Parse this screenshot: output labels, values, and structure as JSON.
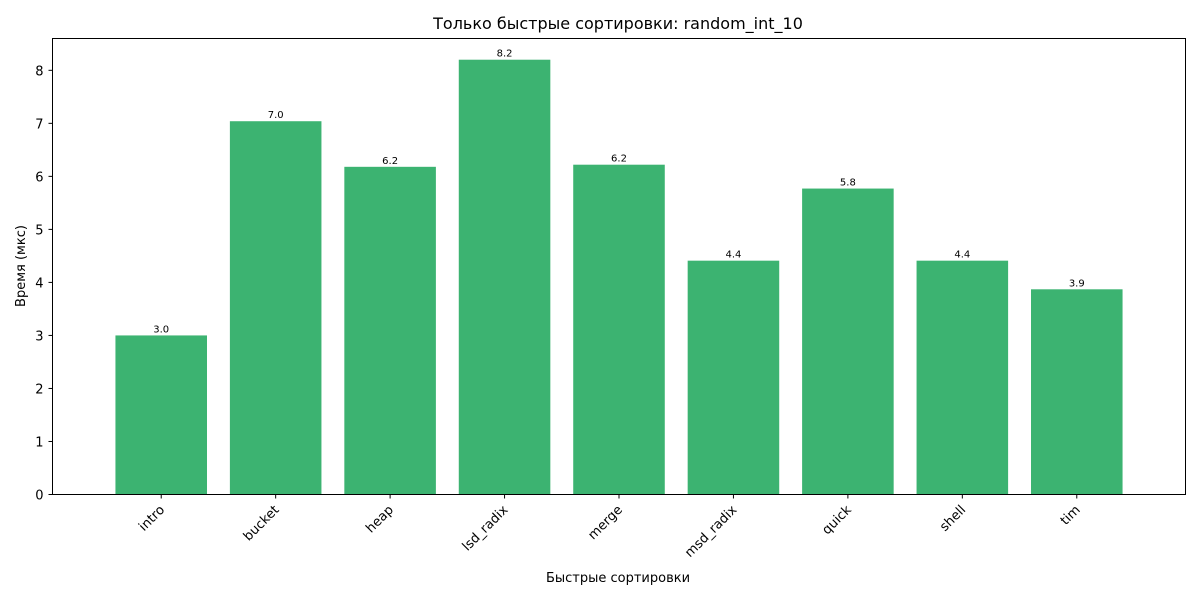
{
  "chart_data": {
    "type": "bar",
    "title": "Только быстрые сортировки: random_int_10",
    "xlabel": "Быстрые сортировки",
    "ylabel": "Время (мкс)",
    "categories": [
      "intro",
      "bucket",
      "heap",
      "lsd_radix",
      "merge",
      "msd_radix",
      "quick",
      "shell",
      "tim"
    ],
    "values": [
      3.0,
      7.04,
      6.18,
      8.2,
      6.22,
      4.41,
      5.77,
      4.41,
      3.87
    ],
    "data_labels": [
      "3.0",
      "7.0",
      "6.2",
      "8.2",
      "6.2",
      "4.4",
      "5.8",
      "4.4",
      "3.9"
    ],
    "ylim": [
      0,
      8.6
    ],
    "yticks": [
      0,
      1,
      2,
      3,
      4,
      5,
      6,
      7,
      8
    ],
    "bar_color": "#3cb371",
    "grid": false
  }
}
